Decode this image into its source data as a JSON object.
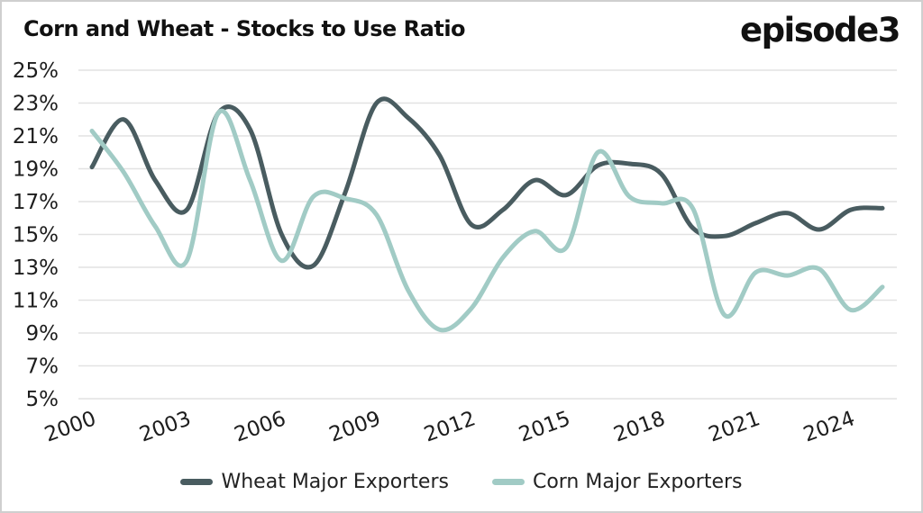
{
  "header": {
    "title": "Corn and Wheat - Stocks to Use Ratio",
    "logo": "episode3"
  },
  "chart_data": {
    "type": "line",
    "title": "Corn and Wheat - Stocks to Use Ratio",
    "xlabel": "",
    "ylabel": "",
    "unit": "%",
    "x": [
      2000,
      2001,
      2002,
      2003,
      2004,
      2005,
      2006,
      2007,
      2008,
      2009,
      2010,
      2011,
      2012,
      2013,
      2014,
      2015,
      2016,
      2017,
      2018,
      2019,
      2020,
      2021,
      2022,
      2023,
      2024,
      2025
    ],
    "series": [
      {
        "name": "Wheat Major Exporters",
        "color": "#495c60",
        "values": [
          19.1,
          22.0,
          18.3,
          16.5,
          22.4,
          21.4,
          15.0,
          13.1,
          17.5,
          23.0,
          22.1,
          19.8,
          15.6,
          16.5,
          18.3,
          17.4,
          19.2,
          19.3,
          18.7,
          15.4,
          14.9,
          15.7,
          16.3,
          15.3,
          16.5,
          16.6
        ]
      },
      {
        "name": "Corn Major Exporters",
        "color": "#a1cbc5",
        "values": [
          21.3,
          18.8,
          15.5,
          13.4,
          22.4,
          18.3,
          13.4,
          17.3,
          17.2,
          16.2,
          11.6,
          9.2,
          10.5,
          13.6,
          15.2,
          14.2,
          20.0,
          17.3,
          16.9,
          16.6,
          10.1,
          12.7,
          12.5,
          12.9,
          10.4,
          11.8
        ]
      }
    ],
    "x_ticks": [
      2000,
      2003,
      2006,
      2009,
      2012,
      2015,
      2018,
      2021,
      2024
    ],
    "y_ticks": [
      25,
      23,
      21,
      19,
      17,
      15,
      13,
      11,
      9,
      7,
      5
    ],
    "y_tick_suffix": "%",
    "ylim": [
      5,
      25
    ],
    "xlim": [
      2000,
      2025
    ],
    "grid": "horizontal",
    "grid_color": "#e2e2e2",
    "legend_position": "bottom"
  }
}
